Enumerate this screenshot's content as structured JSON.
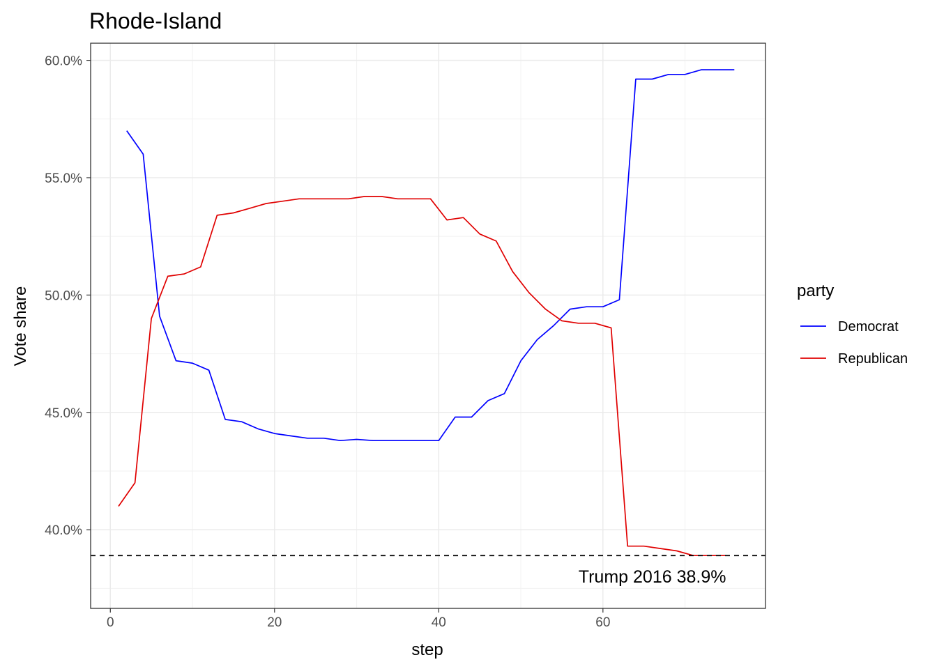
{
  "chart_data": {
    "type": "line",
    "title": "Rhode-Island",
    "xlabel": "step",
    "ylabel": "Vote share",
    "xlim": [
      -2.4,
      79.8
    ],
    "ylim": [
      0.3665,
      0.6073
    ],
    "x_ticks": [
      0,
      20,
      40,
      60
    ],
    "x_tick_labels": [
      "0",
      "20",
      "40",
      "60"
    ],
    "y_ticks": [
      0.4,
      0.45,
      0.5,
      0.55,
      0.6
    ],
    "y_tick_labels": [
      "40.0%",
      "45.0%",
      "50.0%",
      "55.0%",
      "60.0%"
    ],
    "grid": true,
    "legend": {
      "title": "party",
      "position": "right"
    },
    "series": [
      {
        "name": "Democrat",
        "color": "#0000ff",
        "points": [
          [
            2,
            0.57
          ],
          [
            4,
            0.56
          ],
          [
            6,
            0.491
          ],
          [
            8,
            0.472
          ],
          [
            10,
            0.471
          ],
          [
            12,
            0.468
          ],
          [
            14,
            0.447
          ],
          [
            16,
            0.446
          ],
          [
            18,
            0.443
          ],
          [
            20,
            0.441
          ],
          [
            22,
            0.44
          ],
          [
            24,
            0.439
          ],
          [
            26,
            0.439
          ],
          [
            28,
            0.438
          ],
          [
            30,
            0.4385
          ],
          [
            32,
            0.438
          ],
          [
            34,
            0.438
          ],
          [
            36,
            0.438
          ],
          [
            38,
            0.438
          ],
          [
            40,
            0.438
          ],
          [
            42,
            0.448
          ],
          [
            44,
            0.448
          ],
          [
            46,
            0.455
          ],
          [
            48,
            0.458
          ],
          [
            50,
            0.472
          ],
          [
            52,
            0.481
          ],
          [
            54,
            0.487
          ],
          [
            56,
            0.494
          ],
          [
            58,
            0.495
          ],
          [
            60,
            0.495
          ],
          [
            62,
            0.498
          ],
          [
            64,
            0.592
          ],
          [
            66,
            0.592
          ],
          [
            68,
            0.594
          ],
          [
            70,
            0.594
          ],
          [
            72,
            0.596
          ],
          [
            74,
            0.596
          ],
          [
            76,
            0.596
          ]
        ]
      },
      {
        "name": "Republican",
        "color": "#e00000",
        "points": [
          [
            1,
            0.41
          ],
          [
            3,
            0.42
          ],
          [
            5,
            0.49
          ],
          [
            7,
            0.508
          ],
          [
            9,
            0.509
          ],
          [
            11,
            0.512
          ],
          [
            13,
            0.534
          ],
          [
            15,
            0.535
          ],
          [
            17,
            0.537
          ],
          [
            19,
            0.539
          ],
          [
            21,
            0.54
          ],
          [
            23,
            0.541
          ],
          [
            25,
            0.541
          ],
          [
            27,
            0.541
          ],
          [
            29,
            0.541
          ],
          [
            31,
            0.542
          ],
          [
            33,
            0.542
          ],
          [
            35,
            0.541
          ],
          [
            37,
            0.541
          ],
          [
            39,
            0.541
          ],
          [
            41,
            0.532
          ],
          [
            43,
            0.533
          ],
          [
            45,
            0.526
          ],
          [
            47,
            0.523
          ],
          [
            49,
            0.51
          ],
          [
            51,
            0.501
          ],
          [
            53,
            0.494
          ],
          [
            55,
            0.489
          ],
          [
            57,
            0.488
          ],
          [
            59,
            0.488
          ],
          [
            61,
            0.486
          ],
          [
            63,
            0.393
          ],
          [
            65,
            0.393
          ],
          [
            67,
            0.392
          ],
          [
            69,
            0.391
          ],
          [
            71,
            0.389
          ],
          [
            73,
            0.389
          ],
          [
            75,
            0.389
          ]
        ]
      }
    ],
    "reference_line": {
      "y": 0.389,
      "style": "dashed",
      "color": "#000000"
    },
    "annotation": {
      "text": "Trump 2016 38.9%",
      "x": 75,
      "y": 0.3775
    }
  }
}
